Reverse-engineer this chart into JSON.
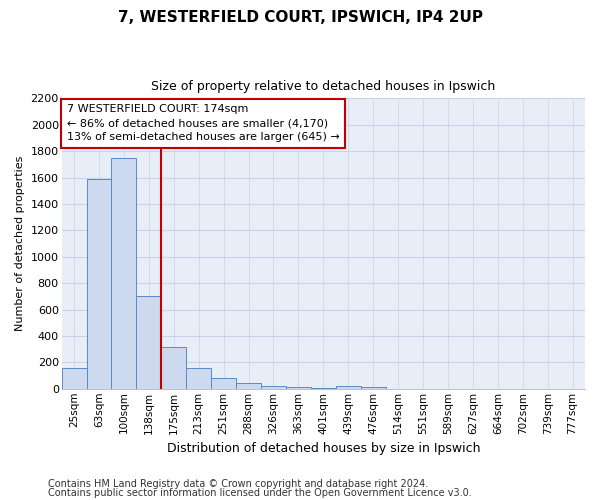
{
  "title": "7, WESTERFIELD COURT, IPSWICH, IP4 2UP",
  "subtitle": "Size of property relative to detached houses in Ipswich",
  "xlabel": "Distribution of detached houses by size in Ipswich",
  "ylabel": "Number of detached properties",
  "footnote1": "Contains HM Land Registry data © Crown copyright and database right 2024.",
  "footnote2": "Contains public sector information licensed under the Open Government Licence v3.0.",
  "categories": [
    "25sqm",
    "63sqm",
    "100sqm",
    "138sqm",
    "175sqm",
    "213sqm",
    "251sqm",
    "288sqm",
    "326sqm",
    "363sqm",
    "401sqm",
    "439sqm",
    "476sqm",
    "514sqm",
    "551sqm",
    "589sqm",
    "627sqm",
    "664sqm",
    "702sqm",
    "739sqm",
    "777sqm"
  ],
  "values": [
    155,
    1590,
    1750,
    700,
    315,
    155,
    80,
    42,
    22,
    12,
    5,
    20,
    15,
    0,
    0,
    0,
    0,
    0,
    0,
    0,
    0
  ],
  "bar_color": "#ccd9ee",
  "bar_edge_color": "#5b8ac5",
  "ylim": [
    0,
    2200
  ],
  "yticks": [
    0,
    200,
    400,
    600,
    800,
    1000,
    1200,
    1400,
    1600,
    1800,
    2000,
    2200
  ],
  "vline_x_index": 4,
  "vline_color": "#c00000",
  "annotation_text": "7 WESTERFIELD COURT: 174sqm\n← 86% of detached houses are smaller (4,170)\n13% of semi-detached houses are larger (645) →",
  "annotation_box_color": "#ffffff",
  "annotation_border_color": "#c00000",
  "grid_color": "#c8d4e8",
  "background_color": "#e8eef8",
  "title_fontsize": 11,
  "subtitle_fontsize": 9,
  "ylabel_fontsize": 8,
  "xlabel_fontsize": 9,
  "footnote_fontsize": 7
}
